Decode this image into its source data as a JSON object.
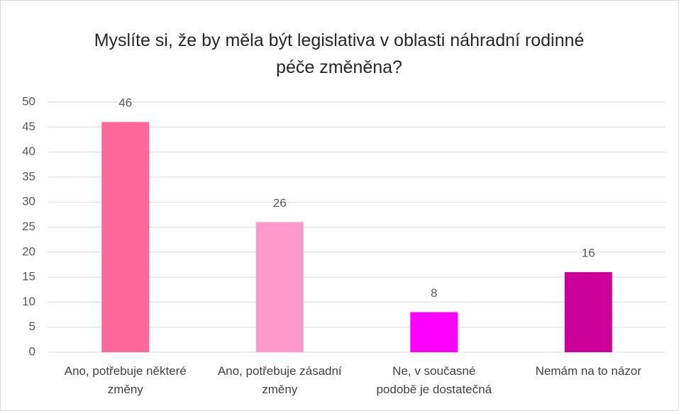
{
  "chart_data": {
    "type": "bar",
    "title": "Myslíte si, že by měla být legislativa v oblasti náhradní rodinné péče změněna?",
    "categories": [
      "Ano, potřebuje některé změny",
      "Ano, potřebuje zásadní změny",
      "Ne, v současné podobě je dostatečná",
      "Nemám na to názor"
    ],
    "values": [
      46,
      26,
      8,
      16
    ],
    "colors": [
      "#ff6699",
      "#ff99cc",
      "#ff00ff",
      "#cc0099"
    ],
    "ylim": [
      0,
      50
    ],
    "yticks": [
      0,
      5,
      10,
      15,
      20,
      25,
      30,
      35,
      40,
      45,
      50
    ],
    "grid": true
  }
}
